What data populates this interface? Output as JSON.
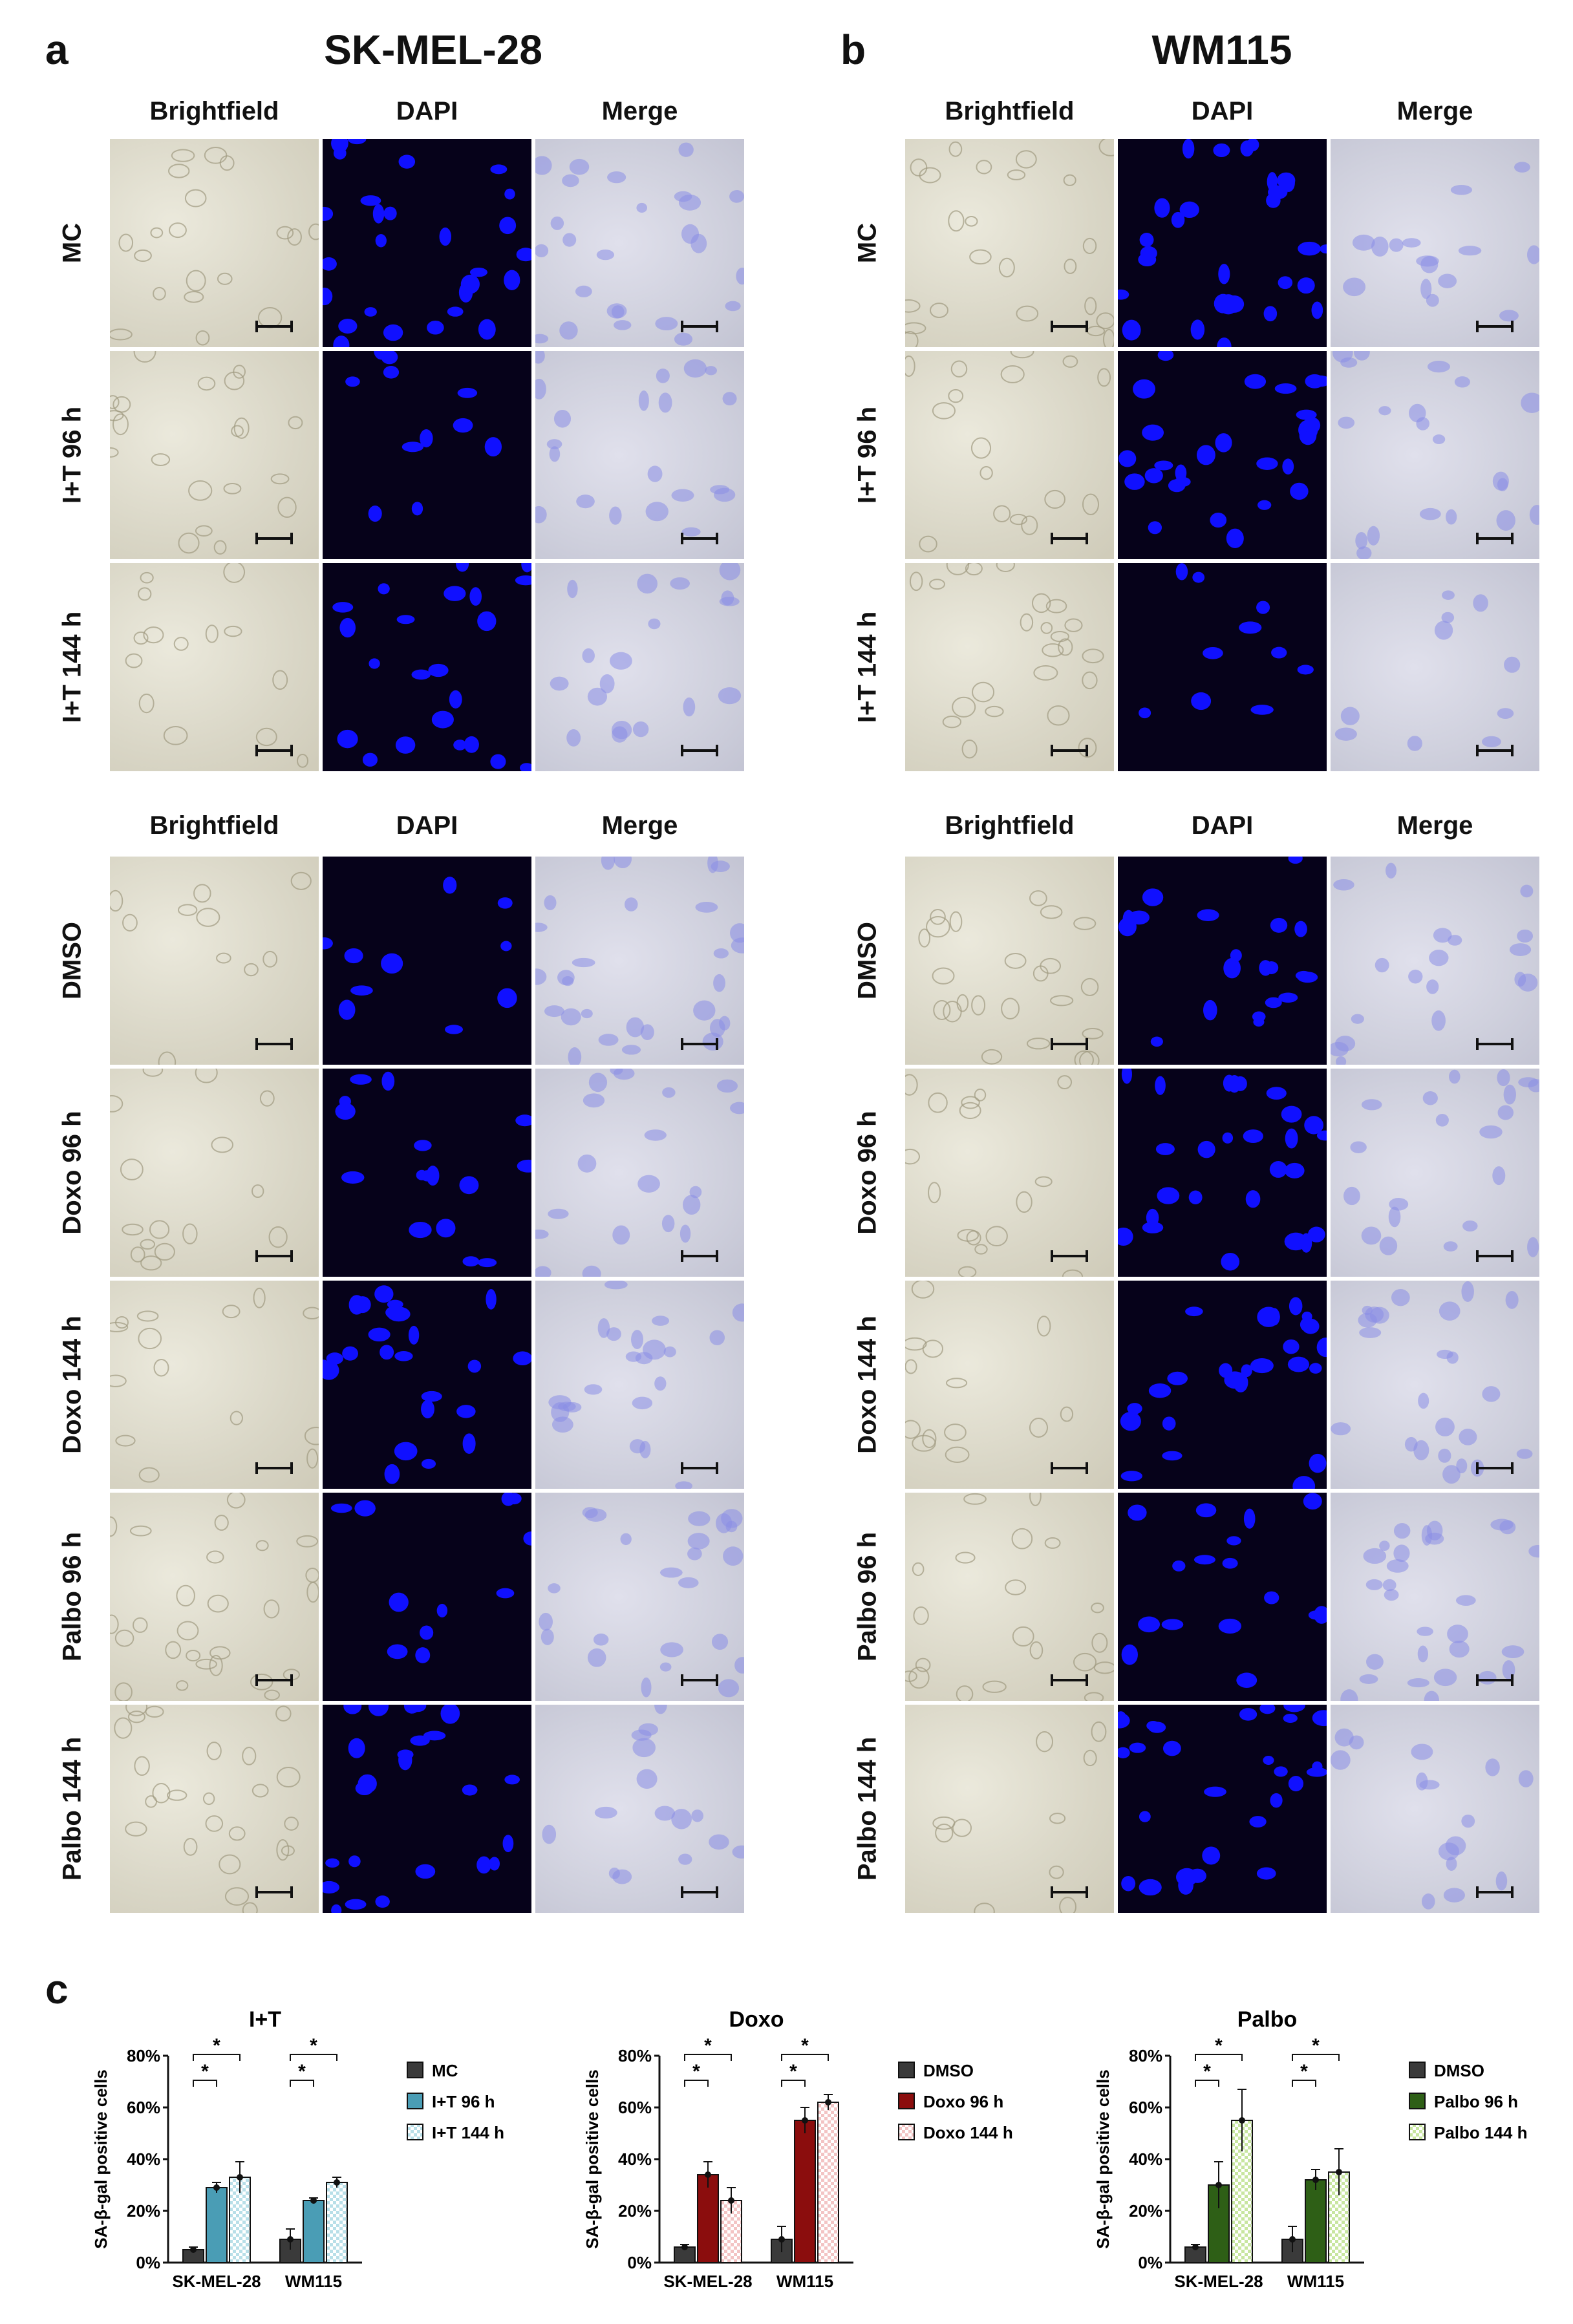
{
  "panel_a": {
    "letter": "a",
    "title": "SK-MEL-28",
    "top_headers": [
      "Brightfield",
      "DAPI",
      "Merge"
    ],
    "top_rows": [
      "MC",
      "I+T 96 h",
      "I+T 144 h"
    ],
    "bottom_headers": [
      "Brightfield",
      "DAPI",
      "Merge"
    ],
    "bottom_rows": [
      "DMSO",
      "Doxo 96 h",
      "Doxo 144 h",
      "Palbo 96 h",
      "Palbo 144 h"
    ]
  },
  "panel_b": {
    "letter": "b",
    "title": "WM115",
    "top_headers": [
      "Brightfield",
      "DAPI",
      "Merge"
    ],
    "top_rows": [
      "MC",
      "I+T 96 h",
      "I+T 144 h"
    ],
    "bottom_headers": [
      "Brightfield",
      "DAPI",
      "Merge"
    ],
    "bottom_rows": [
      "DMSO",
      "Doxo 96 h",
      "Doxo 144 h",
      "Palbo 96 h",
      "Palbo 144 h"
    ]
  },
  "panel_c": {
    "letter": "c"
  },
  "colors": {
    "dark_grey": "#3a3a3a",
    "teal": "#4a9db5",
    "light_teal": "#b8dfe8",
    "dark_red": "#8b0d0d",
    "pink": "#f3c4c4",
    "green": "#2e5f16",
    "light_green": "#c8e6a0",
    "dapi_nucleus": "#1010ff"
  },
  "chart_data": [
    {
      "type": "bar",
      "title": "I+T",
      "ylabel": "SA-β-gal positive cells",
      "yticks": [
        "0%",
        "20%",
        "40%",
        "60%",
        "80%"
      ],
      "ylim": [
        0,
        80
      ],
      "categories": [
        "SK-MEL-28",
        "WM115"
      ],
      "series": [
        {
          "name": "MC",
          "values": [
            5,
            9
          ],
          "errors": [
            1,
            4
          ],
          "pattern": "solid",
          "color": "#3a3a3a"
        },
        {
          "name": "I+T 96 h",
          "values": [
            29,
            24
          ],
          "errors": [
            2,
            1
          ],
          "pattern": "solid",
          "color": "#4a9db5"
        },
        {
          "name": "I+T 144 h",
          "values": [
            33,
            31
          ],
          "errors": [
            6,
            2
          ],
          "pattern": "check",
          "color": "#b8dfe8"
        }
      ],
      "significance": [
        {
          "group": 0,
          "from": 0,
          "to": 1,
          "label": "*",
          "level": 1
        },
        {
          "group": 0,
          "from": 0,
          "to": 2,
          "label": "*",
          "level": 2
        },
        {
          "group": 1,
          "from": 0,
          "to": 1,
          "label": "*",
          "level": 1
        },
        {
          "group": 1,
          "from": 0,
          "to": 2,
          "label": "*",
          "level": 2
        }
      ]
    },
    {
      "type": "bar",
      "title": "Doxo",
      "ylabel": "SA-β-gal positive cells",
      "yticks": [
        "0%",
        "20%",
        "40%",
        "60%",
        "80%"
      ],
      "ylim": [
        0,
        80
      ],
      "categories": [
        "SK-MEL-28",
        "WM115"
      ],
      "series": [
        {
          "name": "DMSO",
          "values": [
            6,
            9
          ],
          "errors": [
            1,
            5
          ],
          "pattern": "solid",
          "color": "#3a3a3a"
        },
        {
          "name": "Doxo 96 h",
          "values": [
            34,
            55
          ],
          "errors": [
            5,
            5
          ],
          "pattern": "solid",
          "color": "#8b0d0d"
        },
        {
          "name": "Doxo 144 h",
          "values": [
            24,
            62
          ],
          "errors": [
            5,
            3
          ],
          "pattern": "check",
          "color": "#f3c4c4"
        }
      ],
      "significance": [
        {
          "group": 0,
          "from": 0,
          "to": 1,
          "label": "*",
          "level": 1
        },
        {
          "group": 0,
          "from": 0,
          "to": 2,
          "label": "*",
          "level": 2
        },
        {
          "group": 1,
          "from": 0,
          "to": 1,
          "label": "*",
          "level": 1
        },
        {
          "group": 1,
          "from": 0,
          "to": 2,
          "label": "*",
          "level": 2
        }
      ]
    },
    {
      "type": "bar",
      "title": "Palbo",
      "ylabel": "SA-β-gal positive cells",
      "yticks": [
        "0%",
        "20%",
        "40%",
        "60%",
        "80%"
      ],
      "ylim": [
        0,
        80
      ],
      "categories": [
        "SK-MEL-28",
        "WM115"
      ],
      "series": [
        {
          "name": "DMSO",
          "values": [
            6,
            9
          ],
          "errors": [
            1,
            5
          ],
          "pattern": "solid",
          "color": "#3a3a3a"
        },
        {
          "name": "Palbo 96 h",
          "values": [
            30,
            32
          ],
          "errors": [
            9,
            4
          ],
          "pattern": "solid",
          "color": "#2e5f16"
        },
        {
          "name": "Palbo 144 h",
          "values": [
            55,
            35
          ],
          "errors": [
            12,
            9
          ],
          "pattern": "check",
          "color": "#c8e6a0"
        }
      ],
      "significance": [
        {
          "group": 0,
          "from": 0,
          "to": 1,
          "label": "*",
          "level": 1
        },
        {
          "group": 0,
          "from": 0,
          "to": 2,
          "label": "*",
          "level": 2
        },
        {
          "group": 1,
          "from": 0,
          "to": 1,
          "label": "*",
          "level": 1
        },
        {
          "group": 1,
          "from": 0,
          "to": 2,
          "label": "*",
          "level": 2
        }
      ]
    }
  ]
}
